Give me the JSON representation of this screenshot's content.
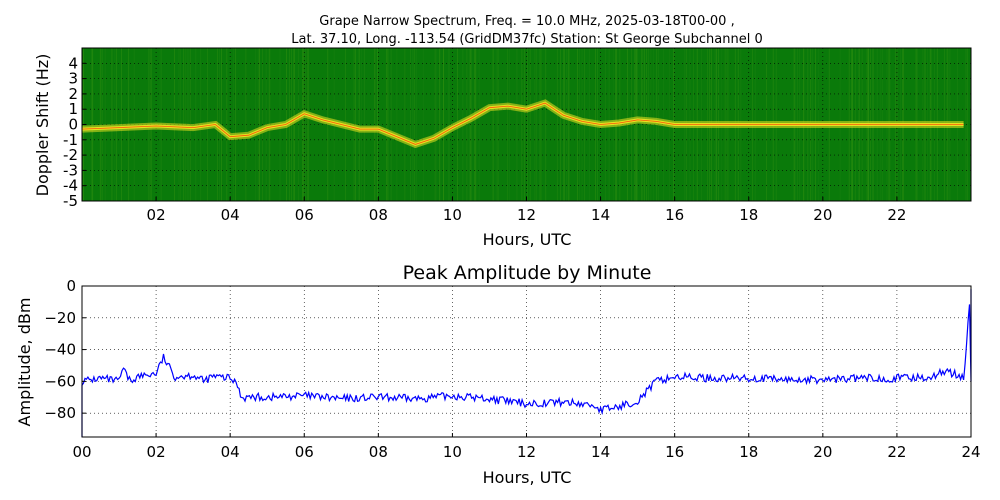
{
  "chart_data": [
    {
      "type": "heatmap",
      "title_line1": "Grape Narrow Spectrum, Freq. = 10.0 MHz, 2025-03-18T00-00 ,",
      "title_line2": "Lat.  37.10, Long. -113.54 (GridDM37fc) Station: St George Subchannel 0",
      "xlabel": "Hours, UTC",
      "ylabel": "Doppler Shift (Hz)",
      "xlim": [
        0,
        24
      ],
      "ylim": [
        -5,
        5
      ],
      "xticks": [
        "02",
        "04",
        "06",
        "08",
        "10",
        "12",
        "14",
        "16",
        "18",
        "20",
        "22"
      ],
      "xtick_values": [
        2,
        4,
        6,
        8,
        10,
        12,
        14,
        16,
        18,
        20,
        22
      ],
      "yticks": [
        "4",
        "3",
        "2",
        "1",
        "0",
        "-1",
        "-2",
        "-3",
        "-4",
        "-5"
      ],
      "ytick_values": [
        4,
        3,
        2,
        1,
        0,
        -1,
        -2,
        -3,
        -4,
        -5
      ],
      "grid": true,
      "colors": {
        "background": "#0a7a0a",
        "trace": "#e8e020",
        "core": "#ff2000"
      },
      "doppler_trace": {
        "hours": [
          0.0,
          1.0,
          2.0,
          3.0,
          3.6,
          4.0,
          4.5,
          5.0,
          5.5,
          6.0,
          6.5,
          7.0,
          7.5,
          8.0,
          8.5,
          9.0,
          9.5,
          10.0,
          10.5,
          11.0,
          11.5,
          12.0,
          12.5,
          13.0,
          13.5,
          14.0,
          14.5,
          15.0,
          15.5,
          16.0,
          18.0,
          20.0,
          22.0,
          23.8
        ],
        "doppler": [
          -0.3,
          -0.2,
          -0.1,
          -0.2,
          0.0,
          -0.8,
          -0.7,
          -0.2,
          0.0,
          0.7,
          0.3,
          0.0,
          -0.3,
          -0.3,
          -0.8,
          -1.3,
          -0.9,
          -0.2,
          0.4,
          1.1,
          1.2,
          1.0,
          1.4,
          0.6,
          0.2,
          0.0,
          0.1,
          0.3,
          0.2,
          0.0,
          0.0,
          0.0,
          0.0,
          0.0
        ]
      }
    },
    {
      "type": "line",
      "title": "Peak Amplitude by Minute",
      "xlabel": "Hours, UTC",
      "ylabel": "Amplitude, dBm",
      "xlim": [
        0,
        24
      ],
      "ylim": [
        -95,
        0
      ],
      "xticks": [
        "00",
        "02",
        "04",
        "06",
        "08",
        "10",
        "12",
        "14",
        "16",
        "18",
        "20",
        "22",
        "24"
      ],
      "xtick_values": [
        0,
        2,
        4,
        6,
        8,
        10,
        12,
        14,
        16,
        18,
        20,
        22,
        24
      ],
      "yticks": [
        "0",
        "−20",
        "−40",
        "−60",
        "−80"
      ],
      "ytick_values": [
        0,
        -20,
        -40,
        -60,
        -80
      ],
      "grid": true,
      "color": "#0000ff",
      "series": [
        {
          "x": [
            0.0,
            0.5,
            1.0,
            1.1,
            1.3,
            1.5,
            2.0,
            2.2,
            2.5,
            3.0,
            3.3,
            3.5,
            4.0,
            4.2,
            4.3,
            5.0,
            6.0,
            7.0,
            8.0,
            9.0,
            10.0,
            11.0,
            12.0,
            13.0,
            13.8,
            14.0,
            14.5,
            15.0,
            15.3,
            15.5,
            16.0,
            17.0,
            18.0,
            19.0,
            20.0,
            21.0,
            22.0,
            23.0,
            23.3,
            23.8,
            24.0
          ],
          "y": [
            -60,
            -58,
            -60,
            -52,
            -60,
            -57,
            -55,
            -45,
            -57,
            -56,
            -60,
            -57,
            -58,
            -62,
            -70,
            -70,
            -69,
            -71,
            -70,
            -71,
            -69,
            -71,
            -74,
            -73,
            -75,
            -78,
            -76,
            -72,
            -65,
            -60,
            -57,
            -58,
            -58,
            -59,
            -59,
            -58,
            -58,
            -57,
            -53,
            -58,
            -2
          ]
        }
      ]
    }
  ]
}
